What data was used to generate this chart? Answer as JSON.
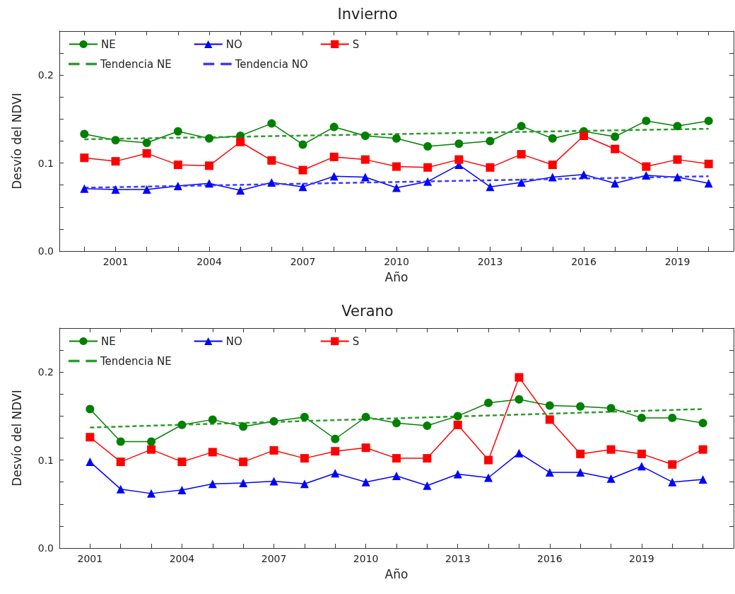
{
  "chart_data": [
    {
      "type": "line",
      "title": "Invierno",
      "xlabel": "Año",
      "ylabel": "Desvío del NDVI",
      "x": [
        2000,
        2001,
        2002,
        2003,
        2004,
        2005,
        2006,
        2007,
        2008,
        2009,
        2010,
        2011,
        2012,
        2013,
        2014,
        2015,
        2016,
        2017,
        2018,
        2019,
        2020
      ],
      "xlim": [
        1999.2,
        2020.8
      ],
      "xticks": [
        {
          "value": 2000,
          "label": null
        },
        2001,
        {
          "value": 2002,
          "label": null
        },
        {
          "value": 2003,
          "label": null
        },
        2004,
        {
          "value": 2005,
          "label": null
        },
        {
          "value": 2006,
          "label": null
        },
        2007,
        {
          "value": 2008,
          "label": null
        },
        {
          "value": 2009,
          "label": null
        },
        2010,
        {
          "value": 2011,
          "label": null
        },
        {
          "value": 2012,
          "label": null
        },
        2013,
        {
          "value": 2014,
          "label": null
        },
        {
          "value": 2015,
          "label": null
        },
        2016,
        {
          "value": 2017,
          "label": null
        },
        {
          "value": 2018,
          "label": null
        },
        2019,
        {
          "value": 2020,
          "label": null
        }
      ],
      "ylim": [
        0,
        0.25
      ],
      "yticks": [
        {
          "value": 0,
          "label": "0.0"
        },
        {
          "value": 0.025,
          "label": null
        },
        {
          "value": 0.05,
          "label": null
        },
        {
          "value": 0.075,
          "label": null
        },
        {
          "value": 0.1,
          "label": "0.1"
        },
        {
          "value": 0.125,
          "label": null
        },
        {
          "value": 0.15,
          "label": null
        },
        {
          "value": 0.175,
          "label": null
        },
        {
          "value": 0.2,
          "label": "0.2"
        },
        {
          "value": 0.225,
          "label": null
        }
      ],
      "grid": false,
      "legend": "top left",
      "series": [
        {
          "name": "NE",
          "color": "#008000",
          "marker": "circle",
          "values": [
            0.133,
            0.126,
            0.123,
            0.136,
            0.128,
            0.131,
            0.145,
            0.121,
            0.141,
            0.131,
            0.128,
            0.119,
            0.122,
            0.125,
            0.142,
            0.128,
            0.136,
            0.13,
            0.148,
            0.142,
            0.148
          ]
        },
        {
          "name": "NO",
          "color": "#0000ff",
          "marker": "triangle",
          "values": [
            0.071,
            0.07,
            0.07,
            0.074,
            0.077,
            0.069,
            0.078,
            0.073,
            0.085,
            0.084,
            0.072,
            0.079,
            0.098,
            0.073,
            0.078,
            0.084,
            0.087,
            0.077,
            0.086,
            0.084,
            0.077
          ]
        },
        {
          "name": "S",
          "color": "#ff0000",
          "marker": "square",
          "values": [
            0.106,
            0.102,
            0.111,
            0.098,
            0.097,
            0.124,
            0.103,
            0.092,
            0.107,
            0.104,
            0.096,
            0.095,
            0.104,
            0.095,
            0.11,
            0.098,
            0.131,
            0.116,
            0.096,
            0.104,
            0.099
          ]
        },
        {
          "name": "Tendencia NE",
          "color": "#2e9a2e",
          "marker": "none",
          "line_style": "dashed",
          "x": [
            2000,
            2020
          ],
          "values": [
            0.127,
            0.139
          ]
        },
        {
          "name": "Tendencia NO",
          "color": "#3b3bff",
          "marker": "none",
          "line_style": "dashed",
          "x": [
            2000,
            2020
          ],
          "values": [
            0.072,
            0.085
          ]
        }
      ]
    },
    {
      "type": "line",
      "title": "Verano",
      "xlabel": "Año",
      "ylabel": "Desvío del NDVI",
      "x": [
        2001,
        2002,
        2003,
        2004,
        2005,
        2006,
        2007,
        2008,
        2009,
        2010,
        2011,
        2012,
        2013,
        2014,
        2015,
        2016,
        2017,
        2018,
        2019,
        2020,
        2021
      ],
      "xlim": [
        2000,
        2022
      ],
      "xticks": [
        2001,
        {
          "value": 2002,
          "label": null
        },
        {
          "value": 2003,
          "label": null
        },
        2004,
        {
          "value": 2005,
          "label": null
        },
        {
          "value": 2006,
          "label": null
        },
        2007,
        {
          "value": 2008,
          "label": null
        },
        {
          "value": 2009,
          "label": null
        },
        2010,
        {
          "value": 2011,
          "label": null
        },
        {
          "value": 2012,
          "label": null
        },
        2013,
        {
          "value": 2014,
          "label": null
        },
        {
          "value": 2015,
          "label": null
        },
        2016,
        {
          "value": 2017,
          "label": null
        },
        {
          "value": 2018,
          "label": null
        },
        2019,
        {
          "value": 2020,
          "label": null
        },
        {
          "value": 2021,
          "label": null
        }
      ],
      "ylim": [
        0,
        0.25
      ],
      "yticks": [
        {
          "value": 0,
          "label": "0.0"
        },
        {
          "value": 0.025,
          "label": null
        },
        {
          "value": 0.05,
          "label": null
        },
        {
          "value": 0.075,
          "label": null
        },
        {
          "value": 0.1,
          "label": "0.1"
        },
        {
          "value": 0.125,
          "label": null
        },
        {
          "value": 0.15,
          "label": null
        },
        {
          "value": 0.175,
          "label": null
        },
        {
          "value": 0.2,
          "label": "0.2"
        },
        {
          "value": 0.225,
          "label": null
        }
      ],
      "grid": false,
      "legend": "top left",
      "series": [
        {
          "name": "NE",
          "color": "#008000",
          "marker": "circle",
          "values": [
            0.158,
            0.121,
            0.121,
            0.14,
            0.146,
            0.138,
            0.144,
            0.149,
            0.124,
            0.149,
            0.142,
            0.139,
            0.15,
            0.165,
            0.169,
            0.162,
            0.161,
            0.159,
            0.148,
            0.148,
            0.142
          ]
        },
        {
          "name": "NO",
          "color": "#0000ff",
          "marker": "triangle",
          "values": [
            0.098,
            0.067,
            0.062,
            0.066,
            0.073,
            0.074,
            0.076,
            0.073,
            0.085,
            0.075,
            0.082,
            0.071,
            0.084,
            0.08,
            0.108,
            0.086,
            0.086,
            0.079,
            0.093,
            0.075,
            0.078
          ]
        },
        {
          "name": "S",
          "color": "#ff0000",
          "marker": "square",
          "values": [
            0.126,
            0.098,
            0.112,
            0.098,
            0.109,
            0.098,
            0.111,
            0.102,
            0.11,
            0.114,
            0.102,
            0.102,
            0.14,
            0.1,
            0.194,
            0.146,
            0.107,
            0.112,
            0.107,
            0.095,
            0.112
          ]
        },
        {
          "name": "Tendencia NE",
          "color": "#2e9a2e",
          "marker": "none",
          "line_style": "dashed",
          "x": [
            2001,
            2021
          ],
          "values": [
            0.137,
            0.158
          ]
        }
      ]
    }
  ]
}
